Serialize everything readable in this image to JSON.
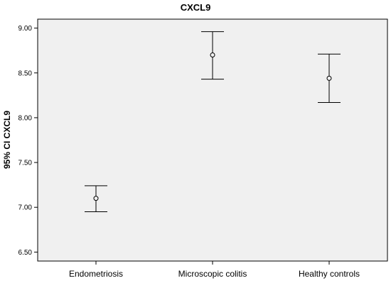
{
  "chart_data": {
    "type": "errorbar",
    "title": "CXCL9",
    "xlabel": "",
    "ylabel": "95% CI CXCL9",
    "ylim": [
      6.4,
      9.1
    ],
    "yticks": [
      "6.50",
      "7.00",
      "7.50",
      "8.00",
      "8.50",
      "9.00"
    ],
    "grid": false,
    "categories": [
      "Endometriosis",
      "Microscopic colitis",
      "Healthy controls"
    ],
    "means": [
      7.1,
      8.7,
      8.44
    ],
    "lower": [
      6.95,
      8.43,
      8.17
    ],
    "upper": [
      7.24,
      8.96,
      8.71
    ],
    "colors": {
      "plot_background": "#f0f0f0",
      "frame": "#000000",
      "marks": "#000000"
    }
  }
}
